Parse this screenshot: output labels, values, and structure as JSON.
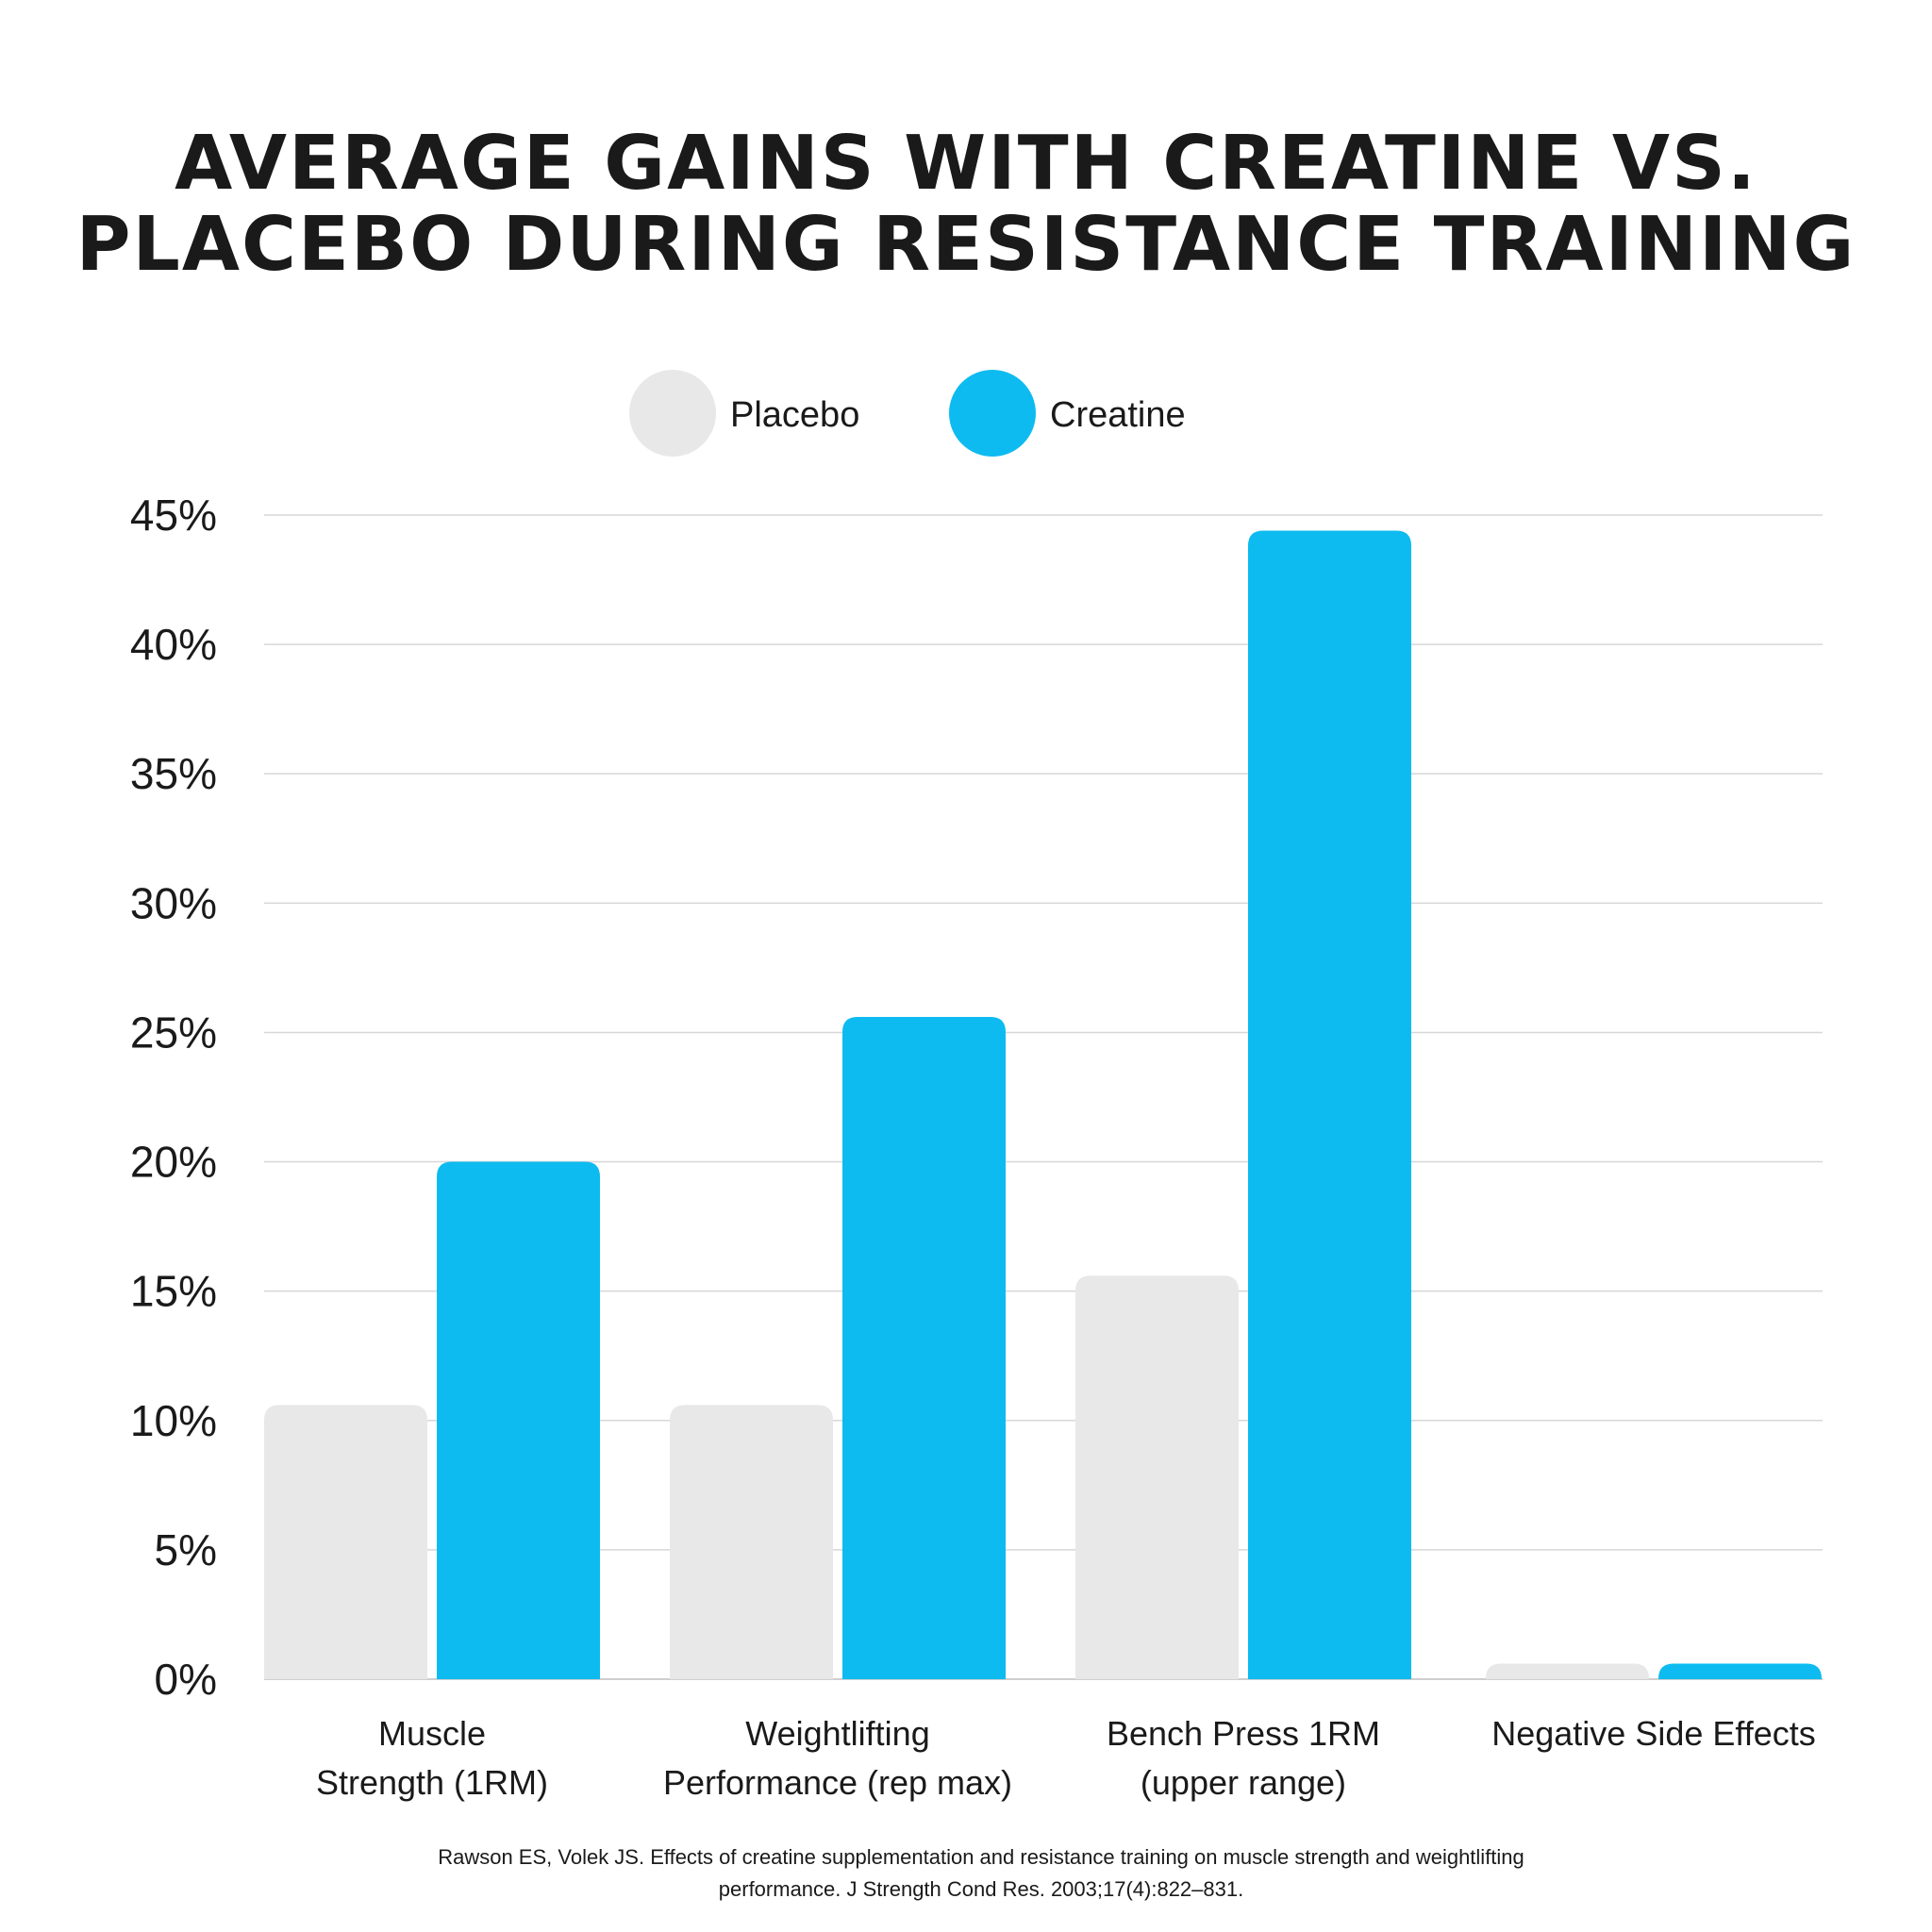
{
  "chart_data": {
    "type": "bar",
    "title_lines": [
      "AVERAGE GAINS WITH CREATINE VS.",
      "PLACEBO DURING RESISTANCE TRAINING"
    ],
    "categories": [
      [
        "Muscle",
        "Strength (1RM)"
      ],
      [
        "Weightlifting",
        "Performance (rep max)"
      ],
      [
        "Bench Press 1RM",
        "(upper range)"
      ],
      [
        "Negative Side Effects"
      ]
    ],
    "series": [
      {
        "name": "Placebo",
        "color": "#e8e8e8",
        "values": [
          10.6,
          10.6,
          15.6,
          0.6
        ]
      },
      {
        "name": "Creatine",
        "color": "#0dbbf0",
        "values": [
          20.0,
          25.6,
          44.4,
          0.6
        ]
      }
    ],
    "ylim": [
      0,
      45
    ],
    "yticks": [
      0,
      5,
      10,
      15,
      20,
      25,
      30,
      35,
      40,
      45
    ],
    "ytick_labels": [
      "0%",
      "5%",
      "10%",
      "15%",
      "20%",
      "25%",
      "30%",
      "35%",
      "40%",
      "45%"
    ],
    "grid": true,
    "legend_position": "top-center",
    "source_lines": [
      "Rawson ES, Volek JS. Effects of creatine supplementation and resistance training on muscle strength and weightlifting",
      "performance. J Strength Cond Res. 2003;17(4):822–831."
    ]
  }
}
